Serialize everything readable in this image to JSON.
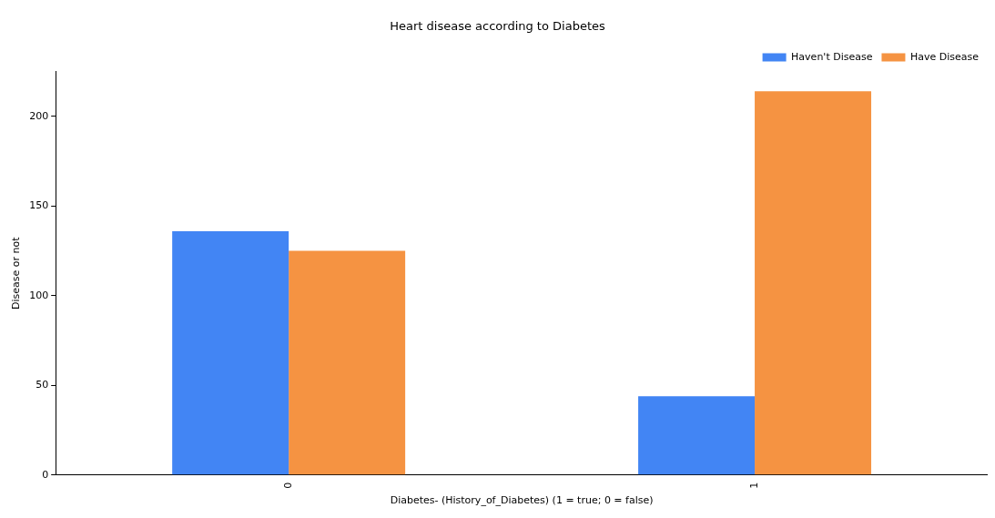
{
  "chart_data": {
    "type": "bar",
    "title": "Heart disease according to Diabetes",
    "xlabel": "Diabetes- (History_of_Diabetes) (1 = true; 0 = false)",
    "ylabel": "Disease or not",
    "categories": [
      "0",
      "1"
    ],
    "series": [
      {
        "name": "Haven't Disease",
        "color": "#4285f4",
        "values": [
          136,
          44
        ]
      },
      {
        "name": "Have Disease",
        "color": "#f59342",
        "values": [
          125,
          214
        ]
      }
    ],
    "ylim": [
      0,
      225
    ],
    "yticks": [
      0,
      50,
      100,
      150,
      200
    ],
    "grid": false,
    "legend": "top right"
  }
}
